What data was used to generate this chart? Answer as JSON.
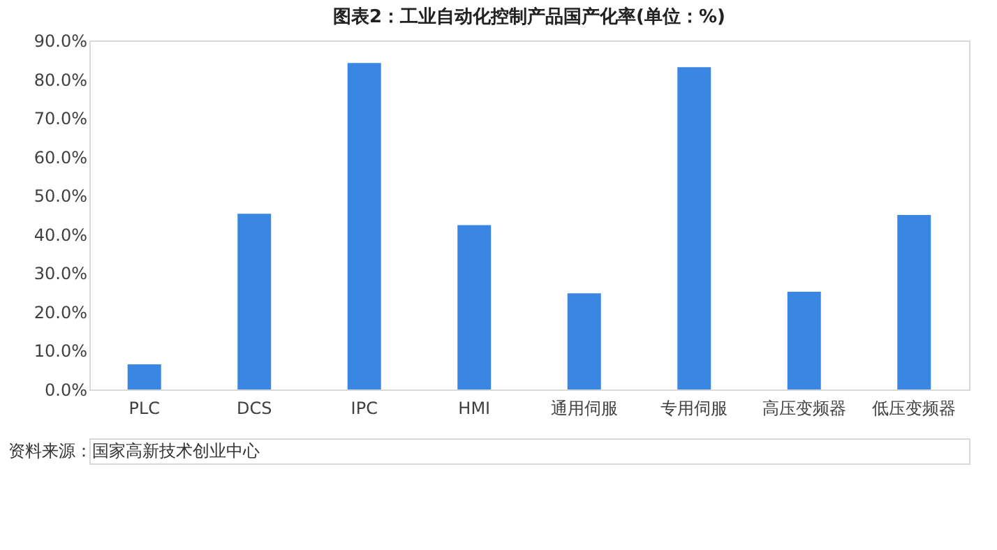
{
  "chart_data": {
    "type": "bar",
    "title": "图表2：工业自动化控制产品国产化率(单位：%)",
    "categories": [
      "PLC",
      "DCS",
      "IPC",
      "HMI",
      "通用伺服",
      "专用伺服",
      "高压变频器",
      "低压变频器"
    ],
    "values": [
      6.5,
      45.3,
      84.2,
      42.4,
      24.8,
      83.1,
      25.2,
      45.0
    ],
    "color": "#3a87e3",
    "ylim": [
      0,
      90
    ],
    "yticks": [
      {
        "value": 0,
        "label": "0.0%"
      },
      {
        "value": 10,
        "label": "10.0%"
      },
      {
        "value": 20,
        "label": "20.0%"
      },
      {
        "value": 30,
        "label": "30.0%"
      },
      {
        "value": 40,
        "label": "40.0%"
      },
      {
        "value": 50,
        "label": "50.0%"
      },
      {
        "value": 60,
        "label": "60.0%"
      },
      {
        "value": 70,
        "label": "70.0%"
      },
      {
        "value": 80,
        "label": "80.0%"
      },
      {
        "value": 90,
        "label": "90.0%"
      }
    ],
    "grid": false,
    "annotations": [
      "资料来源：国家高新技术创业中心"
    ]
  }
}
